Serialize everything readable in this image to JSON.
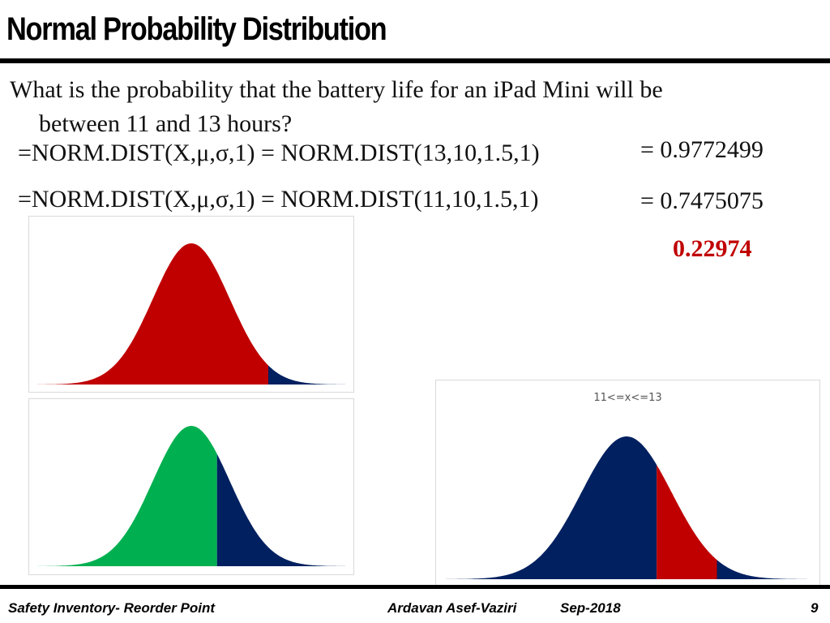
{
  "slide": {
    "title": "Normal Probability Distribution",
    "question_line1": "What is the probability that the battery life for an iPad Mini will be",
    "question_line2": "between 11 and 13 hours?",
    "formula1": "=NORM.DIST(X,μ,σ,1) = NORM.DIST(13,10,1.5,1)",
    "result1": "= 0.9772499",
    "formula2": "=NORM.DIST(X,μ,σ,1) = NORM.DIST(11,10,1.5,1)",
    "result2": "= 0.7475075",
    "difference": "0.22974"
  },
  "charts": {
    "mean": 10,
    "sd": 1.5,
    "x_range": [
      4,
      16
    ],
    "chart1": {
      "cut": 13,
      "left_color": "#c00000",
      "right_color": "#002060"
    },
    "chart2": {
      "cut": 11,
      "left_color": "#00b050",
      "right_color": "#002060"
    },
    "chart3": {
      "title": "11<=x<=13",
      "low": 11,
      "high": 13,
      "outer_color": "#002060",
      "band_color": "#c00000"
    }
  },
  "footer": {
    "left": "Safety Inventory- Reorder Point",
    "author": "Ardavan Asef-Vaziri",
    "date": "Sep-2018",
    "page": "9"
  }
}
